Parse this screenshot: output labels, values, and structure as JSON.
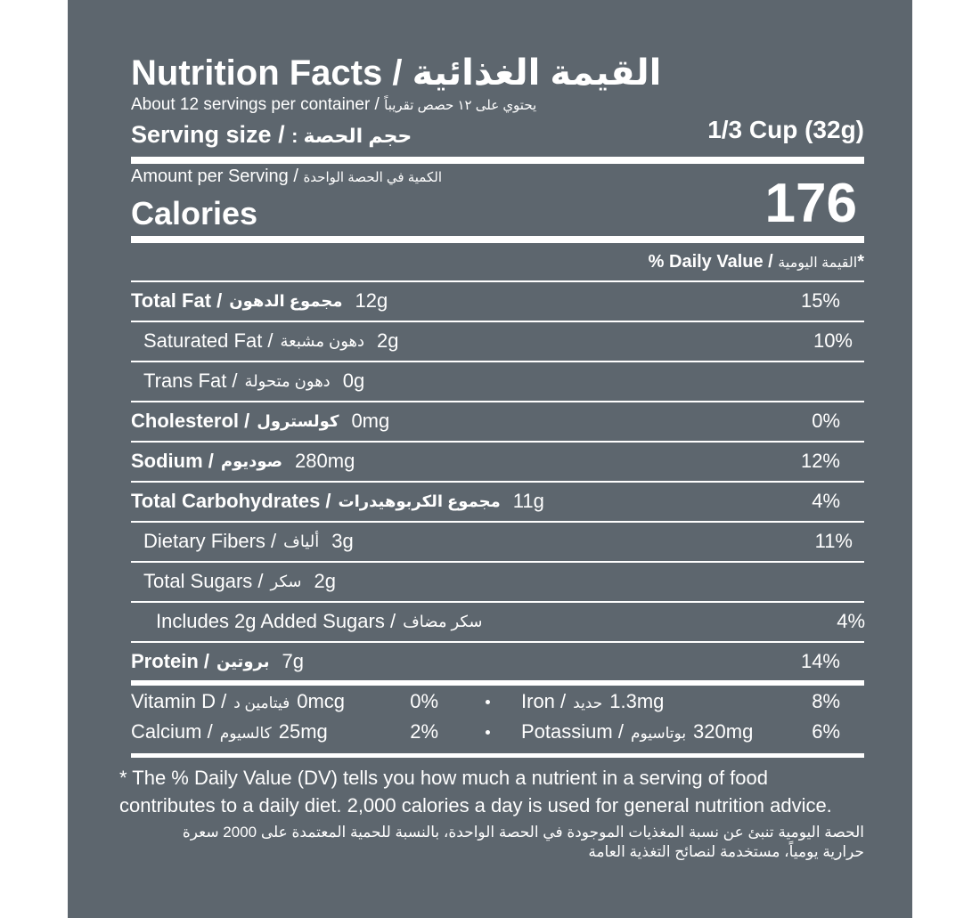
{
  "header": {
    "title_en": "Nutrition Facts /",
    "title_ar": "القيمة الغذائية",
    "servings_en": "About 12 servings per container /",
    "servings_ar": "يحتوي على ١٢ حصص تقريباً"
  },
  "serving": {
    "label_en": "Serving size /",
    "label_ar": "حجم الحصة :",
    "value": "1/3 Cup (32g)"
  },
  "calories": {
    "amount_en": "Amount per Serving /",
    "amount_ar": "الكمية في الحصة الواحدة",
    "label": "Calories",
    "value": "176"
  },
  "daily_value": {
    "en": "% Daily Value /",
    "ar": "القيمة اليومية",
    "mark": "*"
  },
  "nutrients": [
    {
      "en": "Total Fat /",
      "ar": "مجموع الدهون",
      "amount": "12g",
      "dv": "15%",
      "bold": true,
      "indent": 0
    },
    {
      "en": "Saturated Fat /",
      "ar": "دهون مشبعة",
      "amount": "2g",
      "dv": "10%",
      "bold": false,
      "indent": 1
    },
    {
      "en": "Trans Fat /",
      "ar": "دهون متحولة",
      "amount": "0g",
      "dv": null,
      "bold": false,
      "indent": 1
    },
    {
      "en": "Cholesterol /",
      "ar": "كولسترول",
      "amount": "0mg",
      "dv": "0%",
      "bold": true,
      "indent": 0
    },
    {
      "en": "Sodium /",
      "ar": "صوديوم",
      "amount": "280mg",
      "dv": "12%",
      "bold": true,
      "indent": 0
    },
    {
      "en": "Total Carbohydrates /",
      "ar": "مجموع الكربوهيدرات",
      "amount": "11g",
      "dv": "4%",
      "bold": true,
      "indent": 0
    },
    {
      "en": "Dietary Fibers /",
      "ar": "ألياف",
      "amount": "3g",
      "dv": "11%",
      "bold": false,
      "indent": 1
    },
    {
      "en": "Total Sugars /",
      "ar": "سكر",
      "amount": "2g",
      "dv": null,
      "bold": false,
      "indent": 1
    },
    {
      "en": "Includes 2g Added Sugars /",
      "ar": "سكر مضاف",
      "amount": null,
      "dv": "4%",
      "bold": false,
      "indent": 2
    },
    {
      "en": "Protein /",
      "ar": "بروتين",
      "amount": "7g",
      "dv": "14%",
      "bold": true,
      "indent": 0
    }
  ],
  "vitamins": [
    {
      "en": "Vitamin D /",
      "ar": "فيتامين د",
      "amount": "0mcg",
      "dv": "0%"
    },
    {
      "en": "Iron /",
      "ar": "حديد",
      "amount": "1.3mg",
      "dv": "8%"
    },
    {
      "en": "Calcium /",
      "ar": "كالسيوم",
      "amount": "25mg",
      "dv": "2%"
    },
    {
      "en": "Potassium /",
      "ar": "بوتاسيوم",
      "amount": "320mg",
      "dv": "6%"
    }
  ],
  "footnote": {
    "en": "* The % Daily Value (DV) tells you how much a nutrient in a serving of food contributes to a daily diet. 2,000 calories a day is used for general nutrition advice.",
    "ar": "الحصة اليومية تنبئ عن نسبة المغذيات الموجودة في الحصة الواحدة، بالنسبة للحمية المعتمدة على 2000 سعرة حرارية يومياً، مستخدمة لنصائح التغذية العامة"
  }
}
